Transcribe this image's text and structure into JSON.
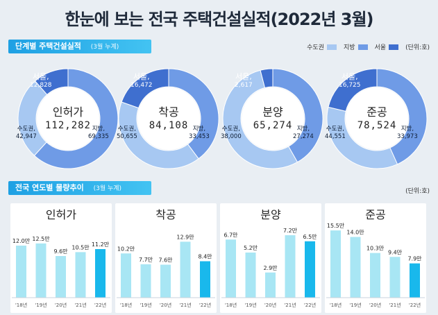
{
  "title": "한눈에 보는 전국 주택건설실적(2022년 3월)",
  "section1": {
    "label": "단계별 주택건설실적",
    "sub": "(3월 누계)",
    "unit": "(단위:호)"
  },
  "legend": [
    {
      "name": "수도권",
      "color": "#a7c8f2"
    },
    {
      "name": "지방",
      "color": "#6f9be6"
    },
    {
      "name": "서울",
      "color": "#3f6fcf"
    }
  ],
  "section2": {
    "label": "전국 연도별 물량추이",
    "sub": "(3월 누계)",
    "unit": "(단위:호)"
  },
  "chart_data": [
    {
      "type": "pie",
      "name": "인허가",
      "total": "112,282",
      "slices": [
        {
          "label": "수도권,",
          "value": 42947,
          "text": "42,947"
        },
        {
          "label": "지방,",
          "value": 69335,
          "text": "69,335"
        },
        {
          "label": "서울,",
          "value": 12828,
          "text": "12,828"
        }
      ]
    },
    {
      "type": "pie",
      "name": "착공",
      "total": "84,108",
      "slices": [
        {
          "label": "수도권,",
          "value": 50655,
          "text": "50,655"
        },
        {
          "label": "지방,",
          "value": 33453,
          "text": "33,453"
        },
        {
          "label": "서울,",
          "value": 16472,
          "text": "16,472"
        }
      ]
    },
    {
      "type": "pie",
      "name": "분양",
      "total": "65,274",
      "slices": [
        {
          "label": "수도권,",
          "value": 38000,
          "text": "38,000"
        },
        {
          "label": "지방,",
          "value": 27274,
          "text": "27,274"
        },
        {
          "label": "서울,",
          "value": 2617,
          "text": "2,617"
        }
      ]
    },
    {
      "type": "pie",
      "name": "준공",
      "total": "78,524",
      "slices": [
        {
          "label": "수도권,",
          "value": 44551,
          "text": "44,551"
        },
        {
          "label": "지방,",
          "value": 33973,
          "text": "33,973"
        },
        {
          "label": "서울,",
          "value": 16725,
          "text": "16,725"
        }
      ]
    },
    {
      "type": "bar",
      "name": "인허가",
      "categories": [
        "'18년",
        "'19년",
        "'20년",
        "'21년",
        "'22년"
      ],
      "values": [
        12.0,
        12.5,
        9.6,
        10.5,
        11.2
      ],
      "labels": [
        "12.0만",
        "12.5만",
        "9.6만",
        "10.5만",
        "11.2만"
      ],
      "ylim": [
        0,
        16
      ]
    },
    {
      "type": "bar",
      "name": "착공",
      "categories": [
        "'18년",
        "'19년",
        "'20년",
        "'21년",
        "'22년"
      ],
      "values": [
        10.2,
        7.7,
        7.6,
        12.9,
        8.4
      ],
      "labels": [
        "10.2만",
        "7.7만",
        "7.6만",
        "12.9만",
        "8.4만"
      ],
      "ylim": [
        0,
        16
      ]
    },
    {
      "type": "bar",
      "name": "분양",
      "categories": [
        "'18년",
        "'19년",
        "'20년",
        "'21년",
        "'22년"
      ],
      "values": [
        6.7,
        5.2,
        2.9,
        7.2,
        6.5
      ],
      "labels": [
        "6.7만",
        "5.2만",
        "2.9만",
        "7.2만",
        "6.5만"
      ],
      "ylim": [
        0,
        8
      ]
    },
    {
      "type": "bar",
      "name": "준공",
      "categories": [
        "'18년",
        "'19년",
        "'20년",
        "'21년",
        "'22년"
      ],
      "values": [
        15.5,
        14.0,
        10.3,
        9.4,
        7.9
      ],
      "labels": [
        "15.5만",
        "14.0만",
        "10.3만",
        "9.4만",
        "7.9만"
      ],
      "ylim": [
        0,
        16
      ]
    }
  ]
}
